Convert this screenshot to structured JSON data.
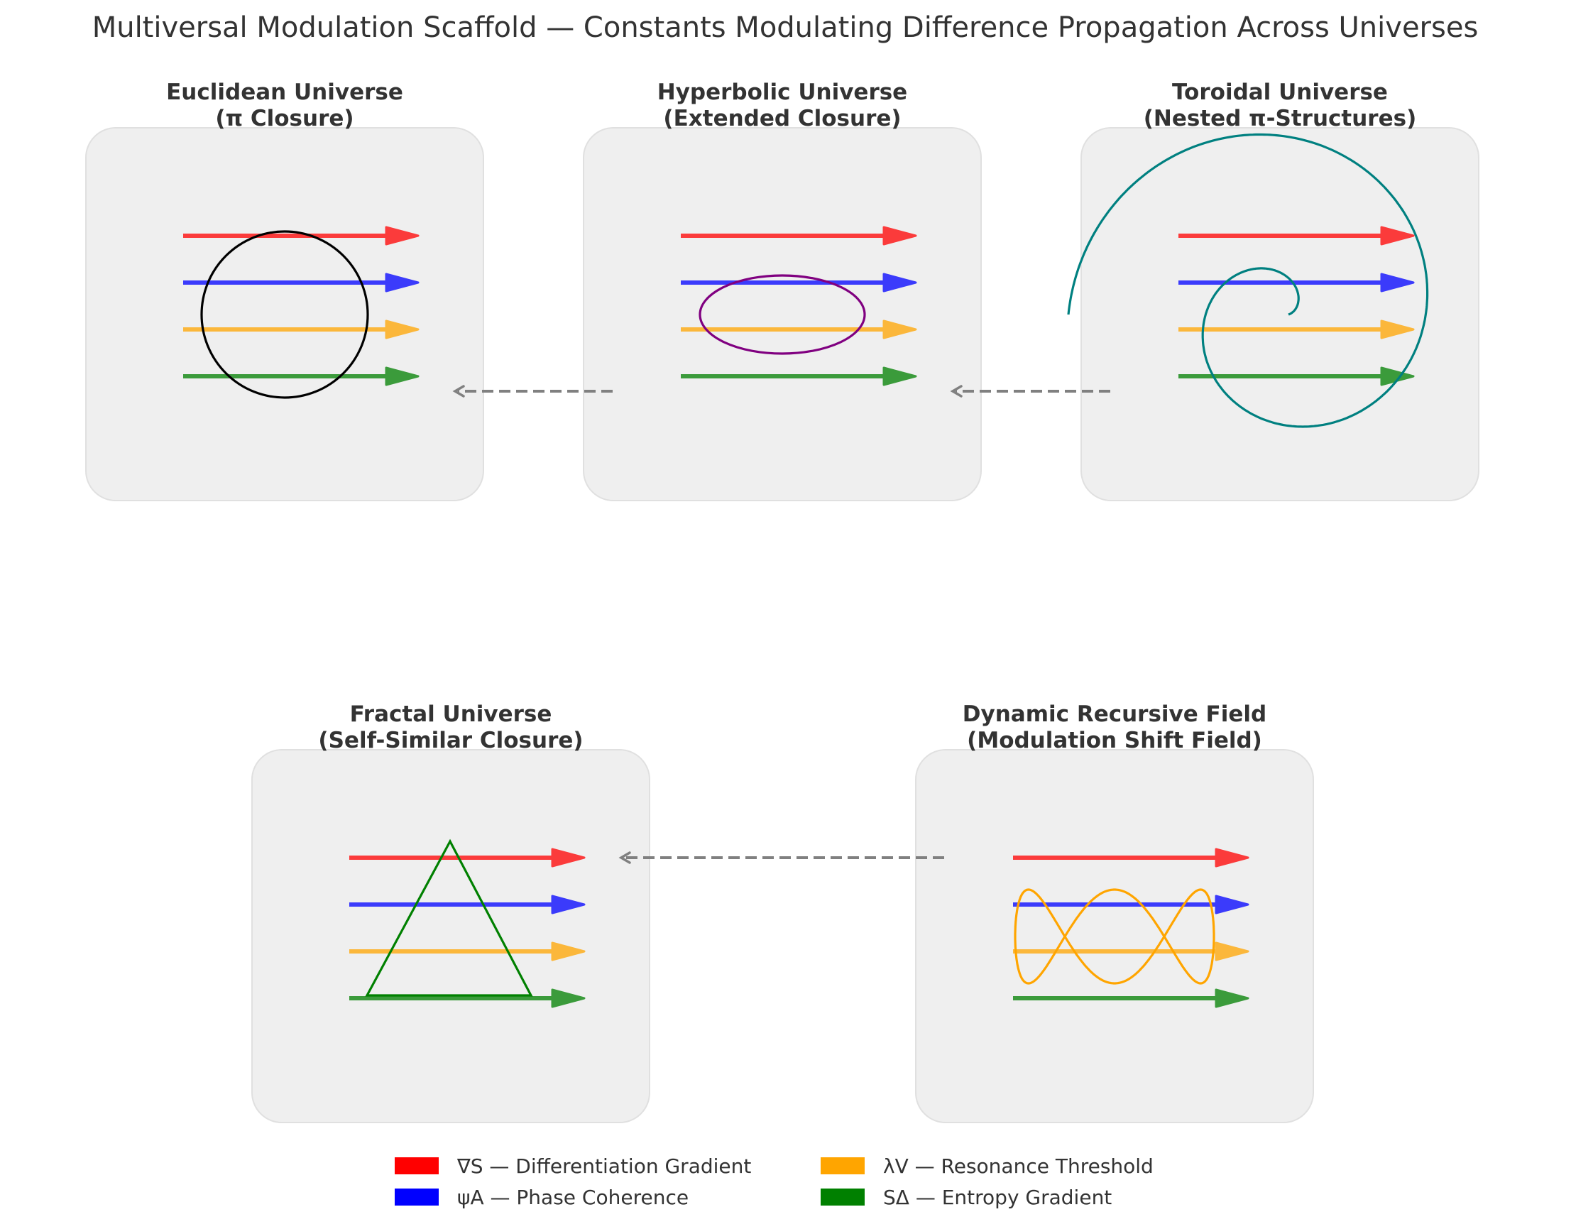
{
  "title": "Multiversal Modulation Scaffold — Constants Modulating Difference Propagation Across Universes",
  "colors": {
    "gradient": "#ff0000",
    "phase": "#0000ff",
    "resonance": "#ffa500",
    "entropy": "#008000",
    "panel_fill": "#efefef",
    "panel_stroke": "#e0e0e0",
    "connector": "#808080",
    "euclidean_shape": "#000000",
    "hyperbolic_shape": "#800080",
    "toroidal_shape": "#008080",
    "fractal_shape": "#008000",
    "dynamic_shape": "#ffa500"
  },
  "panels": [
    {
      "id": "euclidean",
      "title_line1": "Euclidean Universe",
      "title_line2": "(π Closure)",
      "shape": "circle"
    },
    {
      "id": "hyperbolic",
      "title_line1": "Hyperbolic Universe",
      "title_line2": "(Extended Closure)",
      "shape": "ellipse"
    },
    {
      "id": "toroidal",
      "title_line1": "Toroidal Universe",
      "title_line2": "(Nested π-Structures)",
      "shape": "spiral"
    },
    {
      "id": "fractal",
      "title_line1": "Fractal Universe",
      "title_line2": "(Self-Similar Closure)",
      "shape": "triangle"
    },
    {
      "id": "dynamic",
      "title_line1": "Dynamic Recursive Field",
      "title_line2": "(Modulation Shift Field)",
      "shape": "lissajous"
    }
  ],
  "connectors": [
    {
      "from": "hyperbolic",
      "to": "euclidean"
    },
    {
      "from": "toroidal",
      "to": "hyperbolic"
    },
    {
      "from": "dynamic",
      "to": "fractal"
    }
  ],
  "legend": [
    {
      "label": "∇S — Differentiation Gradient",
      "color_key": "gradient"
    },
    {
      "label": "ψA — Phase Coherence",
      "color_key": "phase"
    },
    {
      "label": "λV — Resonance Threshold",
      "color_key": "resonance"
    },
    {
      "label": "SΔ — Entropy Gradient",
      "color_key": "entropy"
    }
  ]
}
